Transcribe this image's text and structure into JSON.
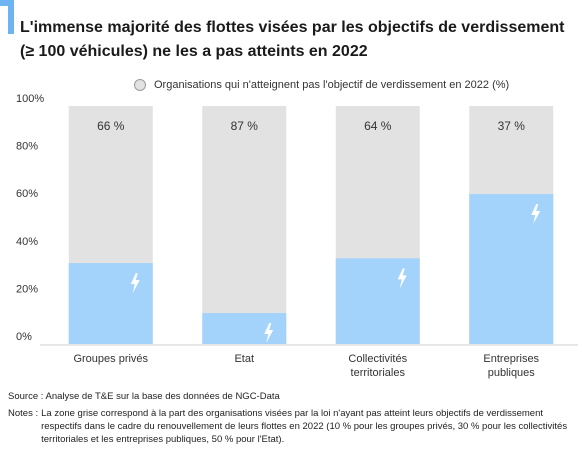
{
  "title": "L'immense majorité des  flottes visées par les objectifs de verdissement (≥ 100 véhicules) ne les a pas atteints en 2022",
  "legend_label": "Organisations qui n'atteignent pas l'objectif de verdissement en 2022 (%)",
  "source": "Source : Analyse de T&E sur la base des données de NGC-Data",
  "notes_label": "Notes :",
  "notes_text": "La zone grise correspond à la part des organisations visées par la loi n'ayant pas atteint leurs objectifs de verdissement respectifs dans le cadre du renouvellement de leurs flottes en 2022 (10 % pour les groupes privés, 30 % pour les collectivités territoriales et les entreprises publiques, 50 % pour l'Etat).",
  "colors": {
    "accent": "#6fb4f2",
    "bar": "#a3d2fa",
    "background_bar": "#e2e2e2",
    "icon": "#ffffff"
  },
  "chart_data": {
    "type": "bar",
    "categories": [
      "Groupes privés",
      "Etat",
      "Collectivités territoriales",
      "Entreprises publiques"
    ],
    "category_lines": [
      [
        "Groupes privés"
      ],
      [
        "Etat"
      ],
      [
        "Collectivités",
        "territoriales"
      ],
      [
        "Entreprises",
        "publiques"
      ]
    ],
    "values": [
      34,
      13,
      36,
      63
    ],
    "background_values": [
      100,
      100,
      100,
      100
    ],
    "labels": [
      "66 %",
      "87 %",
      "64 %",
      "37 %"
    ],
    "ylim": [
      0,
      100
    ],
    "yticks": [
      0,
      20,
      40,
      60,
      80,
      100
    ],
    "ytick_labels": [
      "0%",
      "20%",
      "40%",
      "60%",
      "80%",
      "100%"
    ],
    "bar_icon": "lightning-icon",
    "grid": false
  }
}
